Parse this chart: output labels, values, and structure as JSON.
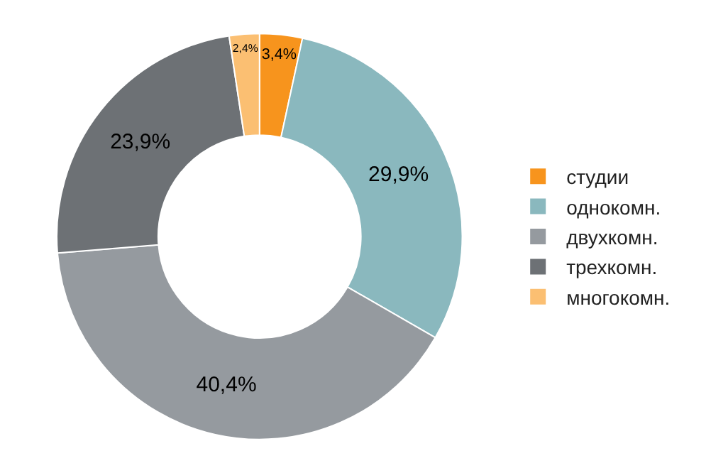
{
  "chart_data": {
    "type": "donut",
    "categories": [
      "студии",
      "однокомн.",
      "двухкомн.",
      "трехкомн.",
      "многокомн."
    ],
    "values": [
      3.4,
      29.9,
      40.4,
      23.9,
      2.4
    ],
    "value_labels": [
      "3,4%",
      "29,9%",
      "40,4%",
      "23,9%",
      "2,4%"
    ],
    "colors": [
      "#f7941d",
      "#8ab8be",
      "#959a9f",
      "#6d7175",
      "#fbbf72"
    ],
    "legend": "right"
  }
}
